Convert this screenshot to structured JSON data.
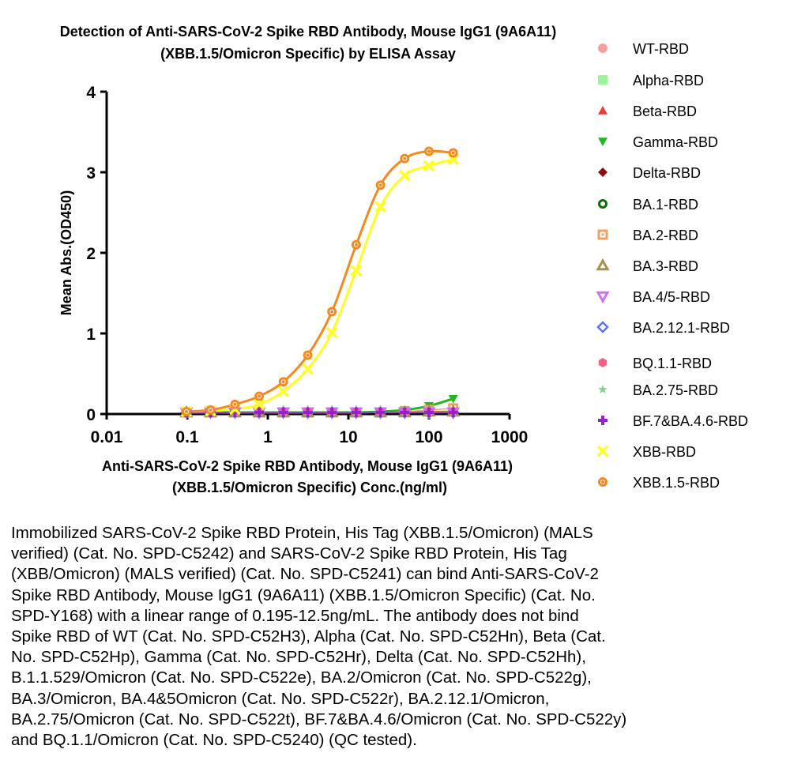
{
  "chart_data": {
    "type": "scatter",
    "title_lines": [
      "Detection of Anti-SARS-CoV-2 Spike RBD Antibody, Mouse IgG1 (9A6A11)",
      "(XBB.1.5/Omicron Specific) by ELISA Assay"
    ],
    "xlabel_lines": [
      "Anti-SARS-CoV-2 Spike RBD Antibody, Mouse IgG1 (9A6A11)",
      "(XBB.1.5/Omicron Specific) Conc.(ng/ml)"
    ],
    "ylabel": "Mean Abs.(OD450)",
    "x_scale": "log",
    "xlim": [
      0.01,
      1000
    ],
    "ylim": [
      0,
      4
    ],
    "x_ticks": [
      "0.01",
      "0.1",
      "1",
      "10",
      "100",
      "1000"
    ],
    "y_ticks": [
      "0",
      "1",
      "2",
      "3",
      "4"
    ],
    "legend_position": "right",
    "x": [
      0.0977,
      0.195,
      0.391,
      0.781,
      1.56,
      3.13,
      6.25,
      12.5,
      25,
      50,
      100,
      200
    ],
    "series": [
      {
        "name": "WT-RBD",
        "marker": "circle-filled",
        "color": "#f4a0a0",
        "values": [
          0.02,
          0.02,
          0.02,
          0.02,
          0.02,
          0.02,
          0.02,
          0.02,
          0.02,
          0.03,
          0.03,
          0.04
        ]
      },
      {
        "name": "Alpha-RBD",
        "marker": "square-filled",
        "color": "#98f598",
        "values": [
          0.02,
          0.02,
          0.02,
          0.02,
          0.02,
          0.02,
          0.02,
          0.02,
          0.02,
          0.02,
          0.03,
          0.03
        ]
      },
      {
        "name": "Beta-RBD",
        "marker": "triangle-up",
        "color": "#e83a3a",
        "values": [
          0.02,
          0.02,
          0.02,
          0.02,
          0.02,
          0.02,
          0.02,
          0.02,
          0.02,
          0.02,
          0.03,
          0.03
        ]
      },
      {
        "name": "Gamma-RBD",
        "marker": "triangle-down",
        "color": "#1fb81f",
        "values": [
          0.02,
          0.02,
          0.02,
          0.02,
          0.02,
          0.02,
          0.02,
          0.02,
          0.03,
          0.05,
          0.1,
          0.19
        ],
        "curve": true
      },
      {
        "name": "Delta-RBD",
        "marker": "diamond",
        "color": "#8b1010",
        "values": [
          0.02,
          0.02,
          0.02,
          0.02,
          0.02,
          0.02,
          0.02,
          0.02,
          0.02,
          0.02,
          0.02,
          0.03
        ]
      },
      {
        "name": "BA.1-RBD",
        "marker": "circle-open",
        "color": "#0b6b0b",
        "values": [
          0.02,
          0.02,
          0.02,
          0.02,
          0.02,
          0.02,
          0.02,
          0.02,
          0.02,
          0.02,
          0.02,
          0.02
        ]
      },
      {
        "name": "BA.2-RBD",
        "marker": "square-dot",
        "color": "#f0a060",
        "values": [
          0.02,
          0.02,
          0.02,
          0.02,
          0.02,
          0.02,
          0.02,
          0.02,
          0.02,
          0.03,
          0.05,
          0.07
        ]
      },
      {
        "name": "BA.3-RBD",
        "marker": "triangle-open",
        "color": "#a89050",
        "values": [
          0.02,
          0.02,
          0.02,
          0.02,
          0.02,
          0.02,
          0.02,
          0.02,
          0.02,
          0.02,
          0.03,
          0.03
        ]
      },
      {
        "name": "BA.4/5-RBD",
        "marker": "triangle-down-open",
        "color": "#d070f0",
        "values": [
          0.02,
          0.02,
          0.02,
          0.02,
          0.02,
          0.02,
          0.02,
          0.02,
          0.02,
          0.02,
          0.02,
          0.02
        ]
      },
      {
        "name": "BA.2.12.1-RBD",
        "marker": "diamond-open",
        "color": "#6070f0",
        "values": [
          0.02,
          0.02,
          0.02,
          0.02,
          0.02,
          0.02,
          0.02,
          0.02,
          0.02,
          0.02,
          0.02,
          0.02
        ]
      },
      {
        "name": "BQ.1.1-RBD",
        "marker": "hexagon",
        "color": "#f0608a",
        "values": [
          0.02,
          0.02,
          0.02,
          0.02,
          0.02,
          0.02,
          0.02,
          0.02,
          0.02,
          0.02,
          0.02,
          0.02
        ]
      },
      {
        "name": "BA.2.75-RBD",
        "marker": "star",
        "color": "#90d090",
        "values": [
          0.02,
          0.02,
          0.02,
          0.02,
          0.02,
          0.02,
          0.02,
          0.02,
          0.02,
          0.02,
          0.02,
          0.02
        ]
      },
      {
        "name": "BF.7&BA.4.6-RBD",
        "marker": "plus",
        "color": "#9b1fc8",
        "values": [
          0.02,
          0.02,
          0.02,
          0.02,
          0.02,
          0.02,
          0.02,
          0.02,
          0.02,
          0.02,
          0.02,
          0.02
        ]
      },
      {
        "name": "XBB-RBD",
        "marker": "cross",
        "color": "#ffff22",
        "values": [
          0.03,
          0.04,
          0.06,
          0.12,
          0.28,
          0.56,
          1.01,
          1.78,
          2.57,
          2.96,
          3.08,
          3.16
        ],
        "curve": true
      },
      {
        "name": "XBB.1.5-RBD",
        "marker": "circle-dot",
        "color": "#f28a22",
        "values": [
          0.03,
          0.05,
          0.12,
          0.22,
          0.4,
          0.73,
          1.27,
          2.1,
          2.84,
          3.17,
          3.26,
          3.24
        ],
        "curve": true
      }
    ]
  },
  "caption": "Immobilized SARS-CoV-2 Spike RBD Protein, His Tag (XBB.1.5/Omicron) (MALS\nverified) (Cat. No. SPD-C5242) and SARS-CoV-2 Spike RBD Protein, His Tag\n(XBB/Omicron) (MALS verified) (Cat. No. SPD-C5241) can bind Anti-SARS-CoV-2\nSpike RBD Antibody, Mouse IgG1 (9A6A11) (XBB.1.5/Omicron Specific) (Cat. No.\nSPD-Y168) with a linear range of 0.195-12.5ng/mL. The antibody does not bind\nSpike RBD of WT (Cat. No. SPD-C52H3), Alpha (Cat. No. SPD-C52Hn), Beta (Cat.\nNo. SPD-C52Hp), Gamma (Cat. No. SPD-C52Hr), Delta (Cat. No. SPD-C52Hh),\nB.1.1.529/Omicron (Cat. No.  SPD-C522e), BA.2/Omicron (Cat. No. SPD-C522g),\nBA.3/Omicron, BA.4&5Omicron (Cat. No. SPD-C522r), BA.2.12.1/Omicron,\nBA.2.75/Omicron (Cat. No. SPD-C522t), BF.7&BA.4.6/Omicron (Cat. No. SPD-C522y)\nand BQ.1.1/Omicron (Cat. No. SPD-C5240) (QC tested)."
}
